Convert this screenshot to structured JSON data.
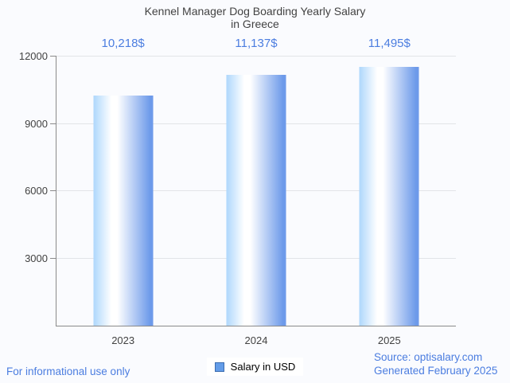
{
  "header": {
    "title_line1": "Kennel Manager Dog Boarding Yearly Salary",
    "title_line2": "in Greece"
  },
  "chart_data": {
    "type": "bar",
    "title": "Kennel Manager Dog Boarding Yearly Salary in Greece",
    "categories": [
      "2023",
      "2024",
      "2025"
    ],
    "series": [
      {
        "name": "Salary in USD",
        "values": [
          10218,
          11137,
          11495
        ]
      }
    ],
    "value_labels": [
      "10,218$",
      "11,137$",
      "11,495$"
    ],
    "xlabel": "",
    "ylabel": "",
    "ylim": [
      0,
      12000
    ],
    "yticks": [
      3000,
      6000,
      9000,
      12000
    ],
    "grid": true,
    "legend_position": "bottom"
  },
  "legend": {
    "label": "Salary in USD"
  },
  "footer": {
    "disclaimer": "For informational use only",
    "source": "Source: optisalary.com",
    "generated": "Generated February 2025"
  },
  "colors": {
    "accent_text": "#4b7de0",
    "bar_edge_light": "#aed7fc",
    "bar_mid": "#ffffff",
    "bar_edge_dark": "#6d9aea",
    "legend_fill": "#639ce8",
    "legend_border": "#3b6cb0",
    "axis": "#8a8a8a",
    "grid": "#e2e4e8",
    "text_dark": "#424242",
    "background": "#fafbfe"
  }
}
